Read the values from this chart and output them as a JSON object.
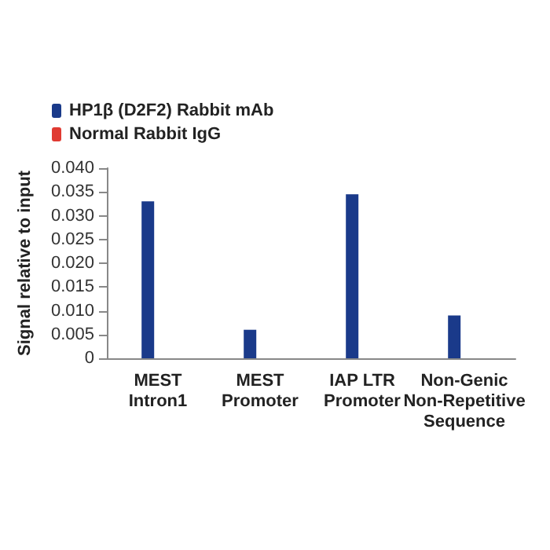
{
  "chart_data": {
    "type": "bar",
    "ylabel": "Signal relative to input",
    "categories": [
      "MEST\nIntron1",
      "MEST\nPromoter",
      "IAP LTR\nPromoter",
      "Non-Genic\nNon-Repetitive\nSequence"
    ],
    "series": [
      {
        "name": "HP1β (D2F2) Rabbit mAb",
        "color": "#1a3a8a",
        "values": [
          0.033,
          0.006,
          0.0345,
          0.009
        ]
      },
      {
        "name": "Normal Rabbit IgG",
        "color": "#e03a32",
        "values": [
          0,
          0,
          0,
          0
        ]
      }
    ],
    "ylim": [
      0,
      0.04
    ],
    "yticks": [
      0,
      0.005,
      {
        "value": 0.01,
        "label": "0.010"
      },
      0.015,
      {
        "value": 0.02,
        "label": "0.020"
      },
      0.025,
      {
        "value": 0.03,
        "label": "0.030"
      },
      0.035,
      {
        "value": 0.04,
        "label": "0.040"
      }
    ],
    "grid": false,
    "legend": "top left"
  }
}
